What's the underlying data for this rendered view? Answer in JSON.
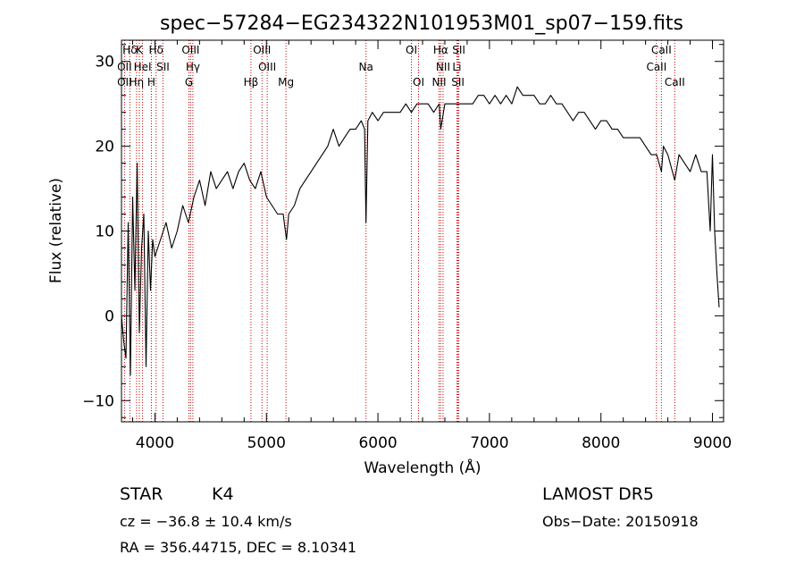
{
  "chart_data": {
    "type": "line",
    "title": "spec−57284−EG234322N101953M01_sp07−159.fits",
    "xlabel": "Wavelength (Å)",
    "ylabel": "Flux (relative)",
    "xlim": [
      3700,
      9100
    ],
    "ylim": [
      -12.5,
      32.5
    ],
    "xticks": [
      4000,
      5000,
      6000,
      7000,
      8000,
      9000
    ],
    "yticks": [
      -10,
      0,
      10,
      20,
      30
    ],
    "grid": false,
    "series": [
      {
        "x": [
          3700,
          3720,
          3740,
          3760,
          3780,
          3800,
          3820,
          3840,
          3860,
          3880,
          3900,
          3920,
          3940,
          3960,
          3980,
          4000,
          4050,
          4100,
          4150,
          4200,
          4250,
          4300,
          4350,
          4400,
          4450,
          4500,
          4550,
          4600,
          4650,
          4700,
          4750,
          4800,
          4850,
          4900,
          4950,
          5000,
          5050,
          5100,
          5150,
          5180,
          5200,
          5250,
          5300,
          5350,
          5400,
          5450,
          5500,
          5550,
          5600,
          5650,
          5700,
          5750,
          5800,
          5850,
          5880,
          5893,
          5910,
          5950,
          6000,
          6050,
          6100,
          6150,
          6200,
          6250,
          6300,
          6350,
          6400,
          6450,
          6500,
          6550,
          6563,
          6600,
          6650,
          6700,
          6750,
          6800,
          6850,
          6900,
          6950,
          7000,
          7050,
          7100,
          7150,
          7200,
          7250,
          7300,
          7350,
          7400,
          7450,
          7500,
          7550,
          7600,
          7650,
          7700,
          7750,
          7800,
          7850,
          7900,
          7950,
          8000,
          8050,
          8100,
          8150,
          8200,
          8250,
          8300,
          8350,
          8400,
          8450,
          8500,
          8542,
          8560,
          8600,
          8662,
          8700,
          8750,
          8800,
          8850,
          8900,
          8950,
          8980,
          9000,
          9020,
          9040,
          9060
        ],
        "y": [
          0,
          -3,
          -5,
          11,
          -7,
          14,
          3,
          18,
          -2,
          8,
          12,
          -6,
          10,
          3,
          9,
          7,
          9,
          11,
          8,
          10,
          13,
          11,
          14,
          16,
          13,
          17,
          15,
          16,
          17,
          15,
          17,
          18,
          16,
          15,
          17,
          14,
          13,
          12,
          12,
          9,
          12,
          13,
          15,
          16,
          17,
          18,
          19,
          20,
          22,
          20,
          21,
          22,
          22,
          23,
          22,
          11,
          23,
          24,
          23,
          24,
          24,
          24,
          24,
          25,
          24,
          25,
          25,
          25,
          24,
          25,
          22,
          25,
          25,
          25,
          25,
          25,
          25,
          26,
          26,
          25,
          26,
          25,
          26,
          25,
          27,
          26,
          26,
          26,
          25,
          25,
          26,
          25,
          25,
          24,
          23,
          24,
          24,
          23,
          22,
          23,
          23,
          22,
          22,
          21,
          21,
          21,
          21,
          20,
          19,
          19,
          17,
          20,
          19,
          16,
          19,
          18,
          17,
          19,
          17,
          17,
          10,
          19,
          10,
          5,
          1
        ]
      }
    ],
    "spectral_lines": [
      {
        "name": "Hδ",
        "x": 3775,
        "row": 0
      },
      {
        "name": "K",
        "x": 3860,
        "row": 0
      },
      {
        "name": "Hδ",
        "x": 4010,
        "row": 0
      },
      {
        "name": "OIII",
        "x": 4320,
        "row": 0
      },
      {
        "name": "OIII",
        "x": 4960,
        "row": 0
      },
      {
        "name": "OI",
        "x": 6300,
        "row": 0
      },
      {
        "name": "Hα",
        "x": 6563,
        "row": 0
      },
      {
        "name": "SII",
        "x": 6725,
        "row": 0
      },
      {
        "name": "CaII",
        "x": 8542,
        "row": 0
      },
      {
        "name": "OII",
        "x": 3727,
        "row": 1
      },
      {
        "name": "HeI",
        "x": 3889,
        "row": 1
      },
      {
        "name": "SII",
        "x": 4072,
        "row": 1
      },
      {
        "name": "Hγ",
        "x": 4340,
        "row": 1
      },
      {
        "name": "OIII",
        "x": 5007,
        "row": 1
      },
      {
        "name": "Na",
        "x": 5893,
        "row": 1
      },
      {
        "name": "NII",
        "x": 6584,
        "row": 1
      },
      {
        "name": "Li",
        "x": 6708,
        "row": 1
      },
      {
        "name": "CaII",
        "x": 8498,
        "row": 1
      },
      {
        "name": "OII",
        "x": 3727,
        "row": 2
      },
      {
        "name": "Hη",
        "x": 3835,
        "row": 2
      },
      {
        "name": "H",
        "x": 3968,
        "row": 2
      },
      {
        "name": "G",
        "x": 4305,
        "row": 2
      },
      {
        "name": "Hβ",
        "x": 4861,
        "row": 2
      },
      {
        "name": "Mg",
        "x": 5175,
        "row": 2
      },
      {
        "name": "OI",
        "x": 6364,
        "row": 2
      },
      {
        "name": "NII",
        "x": 6548,
        "row": 2
      },
      {
        "name": "SII",
        "x": 6717,
        "row": 2
      },
      {
        "name": "CaII",
        "x": 8662,
        "row": 2
      }
    ]
  },
  "info": {
    "class": "STAR",
    "subclass": "K4",
    "survey": "LAMOST  DR5",
    "cz": "cz = −36.8 ± 10.4 km/s",
    "obsdate": "Obs−Date: 20150918",
    "coords": "RA = 356.44715, DEC =   8.10341"
  },
  "colors": {
    "spectrum": "#000000",
    "line_markers": "#cc0000",
    "axes": "#000000"
  }
}
